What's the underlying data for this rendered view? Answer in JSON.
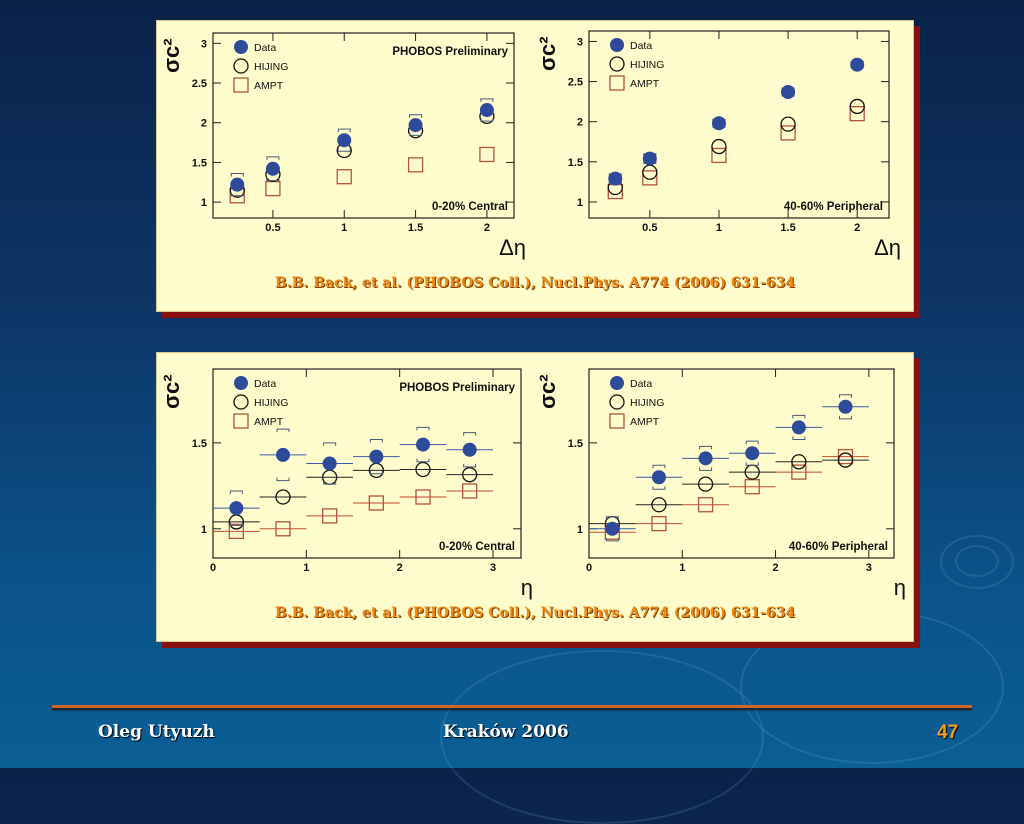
{
  "slide": {
    "citation_top": "B.B. Back, et al. (PHOBOS Coll.), Nucl.Phys. A774 (2006) 631-634",
    "citation_bottom": "B.B. Back, et al. (PHOBOS Coll.), Nucl.Phys. A774 (2006) 631-634",
    "footer_author": "Oleg Utyuzh",
    "footer_place": "Kraków 2006",
    "page_number": "47"
  },
  "colors": {
    "data": "#2e4a9a",
    "hijing": "#111111",
    "ampt": "#b5533a",
    "panel": "#fefccc",
    "accent": "#f08a10"
  },
  "chart_data": [
    {
      "type": "scatter",
      "title": "PHOBOS Preliminary",
      "annotation": "0-20% Central",
      "xlabel": "Δη",
      "ylabel": "σc²",
      "xlim": [
        0.08,
        2.19
      ],
      "ylim": [
        0.8,
        3.13
      ],
      "xticks": [
        "0.5",
        "1",
        "1.5",
        "2"
      ],
      "xtick_values": [
        0.5,
        1,
        1.5,
        2
      ],
      "yticks": [
        "1",
        "1.5",
        "2",
        "2.5",
        "3"
      ],
      "ytick_values": [
        1,
        1.5,
        2,
        2.5,
        3
      ],
      "legend": [
        "Data",
        "HIJING",
        "AMPT"
      ],
      "legend_position": "top-left",
      "x": [
        0.25,
        0.5,
        1,
        1.5,
        2
      ],
      "xbin": 0,
      "series": [
        {
          "name": "Data",
          "values": [
            1.22,
            1.42,
            1.78,
            1.97,
            2.16
          ],
          "sys_err": [
            0.14,
            0.15,
            0.14,
            0.13,
            0.14
          ]
        },
        {
          "name": "HIJING",
          "values": [
            1.15,
            1.35,
            1.65,
            1.9,
            2.08
          ]
        },
        {
          "name": "AMPT",
          "values": [
            1.08,
            1.17,
            1.32,
            1.47,
            1.6
          ]
        }
      ]
    },
    {
      "type": "scatter",
      "annotation": "40-60% Peripheral",
      "xlabel": "Δη",
      "ylabel": "σc²",
      "xlim": [
        0.06,
        2.23
      ],
      "ylim": [
        0.8,
        3.13
      ],
      "xticks": [
        "0.5",
        "1",
        "1.5",
        "2"
      ],
      "xtick_values": [
        0.5,
        1,
        1.5,
        2
      ],
      "yticks": [
        "1",
        "1.5",
        "2",
        "2.5",
        "3"
      ],
      "ytick_values": [
        1,
        1.5,
        2,
        2.5,
        3
      ],
      "legend": [
        "Data",
        "HIJING",
        "AMPT"
      ],
      "legend_position": "top-left",
      "x": [
        0.25,
        0.5,
        1,
        1.5,
        2
      ],
      "xbin": 0,
      "series": [
        {
          "name": "Data",
          "values": [
            1.29,
            1.54,
            1.98,
            2.37,
            2.71
          ],
          "sys_err": [
            0.06,
            0.06,
            0.05,
            0.05,
            0.04
          ]
        },
        {
          "name": "HIJING",
          "values": [
            1.18,
            1.37,
            1.69,
            1.97,
            2.19
          ]
        },
        {
          "name": "AMPT",
          "values": [
            1.13,
            1.3,
            1.58,
            1.86,
            2.1
          ]
        }
      ]
    },
    {
      "type": "scatter",
      "title": "PHOBOS Preliminary",
      "annotation": "0-20% Central",
      "xlabel": "η",
      "ylabel": "σc²",
      "xlim": [
        0,
        3.3
      ],
      "ylim": [
        0.83,
        1.93
      ],
      "xticks": [
        "0",
        "1",
        "2",
        "3"
      ],
      "xtick_values": [
        0,
        1,
        2,
        3
      ],
      "yticks": [
        "1",
        "1.5"
      ],
      "ytick_values": [
        1,
        1.5
      ],
      "legend": [
        "Data",
        "HIJING",
        "AMPT"
      ],
      "legend_position": "top-left",
      "x": [
        0.25,
        0.75,
        1.25,
        1.75,
        2.25,
        2.75
      ],
      "xbin": 0.5,
      "series": [
        {
          "name": "Data",
          "values": [
            1.12,
            1.43,
            1.38,
            1.42,
            1.49,
            1.46
          ],
          "sys_err": [
            0.1,
            0.15,
            0.12,
            0.1,
            0.1,
            0.1
          ]
        },
        {
          "name": "HIJING",
          "values": [
            1.04,
            1.185,
            1.3,
            1.34,
            1.345,
            1.315
          ]
        },
        {
          "name": "AMPT",
          "values": [
            0.985,
            1.0,
            1.075,
            1.15,
            1.185,
            1.22
          ]
        }
      ]
    },
    {
      "type": "scatter",
      "annotation": "40-60% Peripheral",
      "xlabel": "η",
      "ylabel": "σc²",
      "xlim": [
        0,
        3.27
      ],
      "ylim": [
        0.83,
        1.93
      ],
      "xticks": [
        "0",
        "1",
        "2",
        "3"
      ],
      "xtick_values": [
        0,
        1,
        2,
        3
      ],
      "yticks": [
        "1",
        "1.5"
      ],
      "ytick_values": [
        1,
        1.5
      ],
      "legend": [
        "Data",
        "HIJING",
        "AMPT"
      ],
      "legend_position": "top-left",
      "x": [
        0.25,
        0.75,
        1.25,
        1.75,
        2.25,
        2.75
      ],
      "xbin": 0.5,
      "series": [
        {
          "name": "Data",
          "values": [
            1.0,
            1.3,
            1.41,
            1.44,
            1.59,
            1.71
          ],
          "sys_err": [
            0.07,
            0.07,
            0.07,
            0.07,
            0.07,
            0.07
          ]
        },
        {
          "name": "HIJING",
          "values": [
            1.03,
            1.14,
            1.26,
            1.33,
            1.39,
            1.4
          ]
        },
        {
          "name": "AMPT",
          "values": [
            0.98,
            1.03,
            1.14,
            1.245,
            1.33,
            1.42
          ]
        }
      ]
    }
  ]
}
